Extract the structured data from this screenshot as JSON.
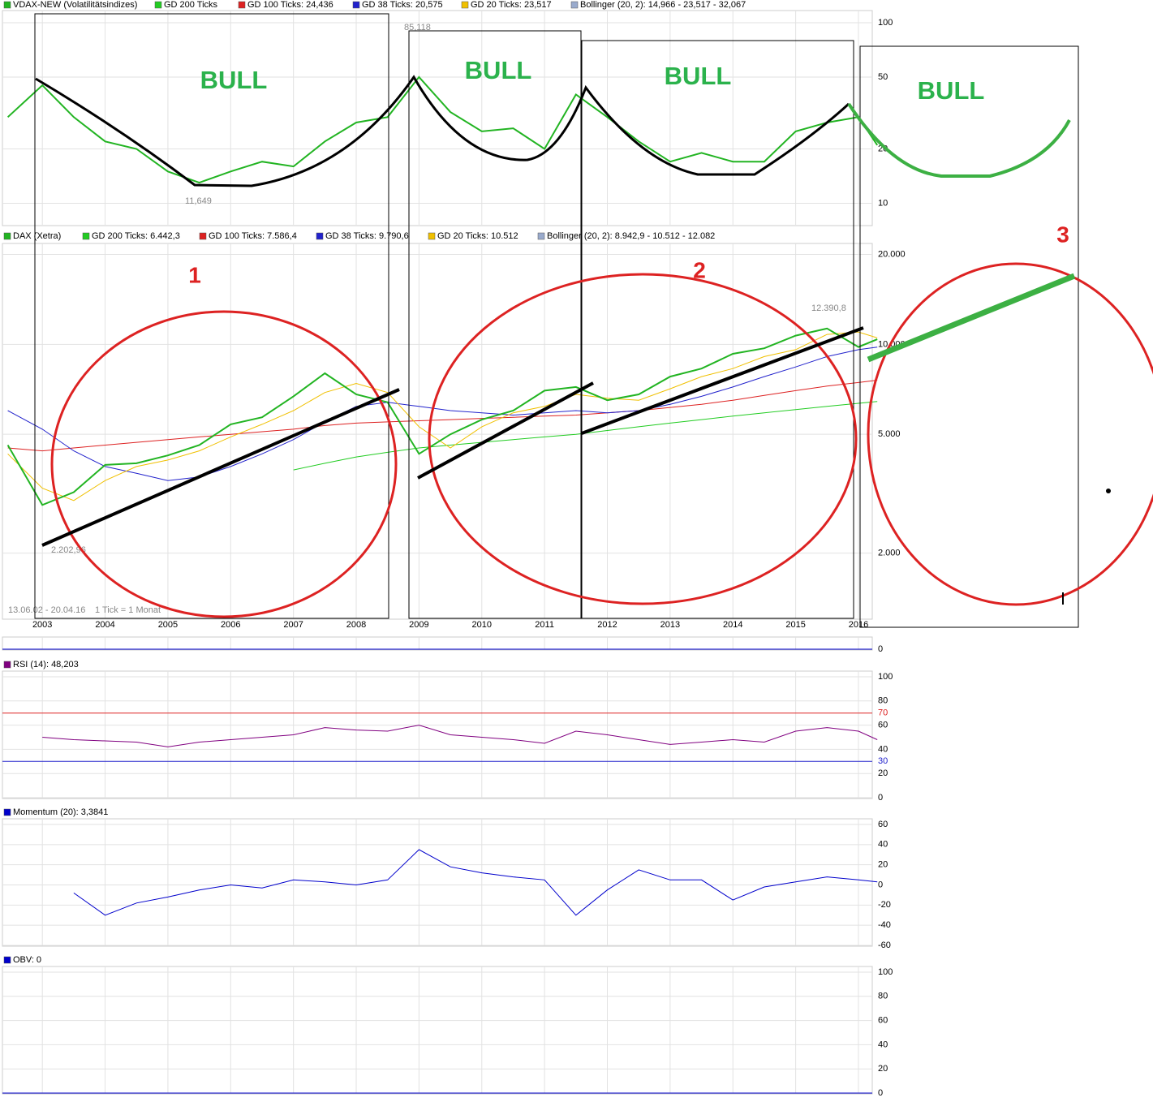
{
  "chart_data": [
    {
      "type": "line",
      "log_scale": true,
      "ylim": [
        7.6,
        112
      ],
      "yticks": [
        10,
        20,
        50,
        100
      ],
      "grid": true,
      "xlim": [
        2002.39,
        2016.22
      ],
      "x": [
        2002.45,
        2003,
        2003.5,
        2004,
        2004.5,
        2005,
        2005.5,
        2006,
        2006.5,
        2007,
        2007.5,
        2008,
        2008.5,
        2009,
        2009.5,
        2010,
        2010.5,
        2011,
        2011.5,
        2012,
        2012.5,
        2013,
        2013.5,
        2014,
        2014.5,
        2015,
        2015.5,
        2016,
        2016.3
      ],
      "series": [
        {
          "name": "VDAX-NEW (Volatilitätsindizes)",
          "color": "#22b422",
          "values": [
            30,
            45,
            30,
            22,
            20,
            15,
            13,
            15,
            17,
            16,
            22,
            28,
            30,
            50,
            32,
            25,
            26,
            20,
            40,
            30,
            22,
            17,
            19,
            17,
            17,
            25,
            28,
            30,
            21
          ]
        }
      ],
      "indicators": [
        {
          "label": "GD 200 Ticks",
          "color": "#22cc22"
        },
        {
          "label": "GD 100 Ticks: 24,436",
          "color": "#dd2222"
        },
        {
          "label": "GD 38 Ticks: 20,575",
          "color": "#2222cc"
        },
        {
          "label": "GD 20 Ticks: 23,517",
          "color": "#f0c000"
        },
        {
          "label": "Bollinger (20, 2): 14,966 - 23,517 - 32,067",
          "color": "#99aacc"
        }
      ],
      "annotations": [
        "85,118",
        "11,649"
      ]
    },
    {
      "type": "line",
      "log_scale": true,
      "ylim": [
        1210,
        21500
      ],
      "yticks": [
        {
          "value": 2000,
          "label": "2.000"
        },
        {
          "value": 5000,
          "label": "5.000"
        },
        {
          "value": 10000,
          "label": "10.000"
        },
        {
          "value": 20000,
          "label": "20.000"
        }
      ],
      "grid": true,
      "xlim": [
        2002.39,
        2016.22
      ],
      "xticks": [
        2003,
        2004,
        2005,
        2006,
        2007,
        2008,
        2009,
        2010,
        2011,
        2012,
        2013,
        2014,
        2015,
        2016
      ],
      "x": [
        2002.45,
        2003,
        2003.5,
        2004,
        2004.5,
        2005,
        2005.5,
        2006,
        2006.5,
        2007,
        2007.5,
        2008,
        2008.5,
        2009,
        2009.5,
        2010,
        2010.5,
        2011,
        2011.5,
        2012,
        2012.5,
        2013,
        2013.5,
        2014,
        2014.5,
        2015,
        2015.5,
        2016,
        2016.3
      ],
      "series": [
        {
          "name": "DAX (Xetra)",
          "color": "#22b422",
          "values": [
            4600,
            2900,
            3200,
            3950,
            4000,
            4250,
            4600,
            5400,
            5700,
            6700,
            8000,
            6800,
            6400,
            4300,
            5000,
            5600,
            6000,
            7000,
            7200,
            6500,
            6800,
            7800,
            8300,
            9300,
            9700,
            10700,
            11300,
            9800,
            10400
          ]
        }
      ],
      "indicators": [
        {
          "label": "GD 200 Ticks: 6.442,3",
          "color": "#22cc22",
          "values": [
            null,
            null,
            null,
            null,
            null,
            null,
            null,
            null,
            null,
            3800,
            4000,
            4200,
            4350,
            4500,
            4600,
            4700,
            4800,
            4900,
            5000,
            5150,
            5300,
            5450,
            5600,
            5750,
            5900,
            6050,
            6200,
            6350,
            6440
          ]
        },
        {
          "label": "GD 100 Ticks: 7.586,4",
          "color": "#dd2222",
          "values": [
            4500,
            4400,
            4500,
            4600,
            4700,
            4800,
            4900,
            5000,
            5100,
            5200,
            5350,
            5450,
            5500,
            5550,
            5600,
            5650,
            5700,
            5750,
            5800,
            5900,
            6000,
            6150,
            6300,
            6500,
            6750,
            7000,
            7250,
            7450,
            7590
          ]
        },
        {
          "label": "GD 38 Ticks: 9.790,6",
          "color": "#2222cc",
          "values": [
            6000,
            5200,
            4400,
            3900,
            3700,
            3500,
            3600,
            3900,
            4300,
            4800,
            5500,
            6200,
            6400,
            6200,
            6000,
            5900,
            5800,
            5900,
            6000,
            5900,
            6000,
            6300,
            6700,
            7200,
            7800,
            8400,
            9100,
            9600,
            9790
          ]
        },
        {
          "label": "GD 20 Ticks: 10.512",
          "color": "#f0c000",
          "values": [
            4300,
            3300,
            3000,
            3500,
            3900,
            4100,
            4400,
            4900,
            5400,
            6000,
            6900,
            7400,
            6900,
            5300,
            4500,
            5300,
            5900,
            6200,
            6800,
            6600,
            6500,
            7100,
            7800,
            8300,
            9100,
            9600,
            10800,
            11000,
            10510
          ]
        },
        {
          "label": "Bollinger (20, 2): 8.942,9 - 10.512 - 12.082",
          "color": "#99aacc"
        }
      ],
      "annotations": [
        "12.390,8",
        "2.202,96",
        "13.06.02 - 20.04.16",
        "1 Tick = 1 Monat"
      ]
    },
    {
      "type": "line",
      "yticks": [
        0
      ],
      "grid": true,
      "zero_line_color": "#0000cc"
    },
    {
      "type": "line",
      "ylim": [
        0,
        100
      ],
      "yticks": [
        0,
        20,
        40,
        60,
        80,
        100
      ],
      "grid": true,
      "xlim": [
        2002.39,
        2016.22
      ],
      "ref_lines": [
        {
          "value": 70,
          "color": "#dd2222"
        },
        {
          "value": 30,
          "color": "#2222cc"
        }
      ],
      "x": [
        2002.45,
        2003,
        2003.5,
        2004,
        2004.5,
        2005,
        2005.5,
        2006,
        2006.5,
        2007,
        2007.5,
        2008,
        2008.5,
        2009,
        2009.5,
        2010,
        2010.5,
        2011,
        2011.5,
        2012,
        2012.5,
        2013,
        2013.5,
        2014,
        2014.5,
        2015,
        2015.5,
        2016,
        2016.3
      ],
      "series": [
        {
          "name": "RSI (14): 48,203",
          "color": "#800080",
          "values": [
            null,
            50,
            48,
            47,
            46,
            42,
            46,
            48,
            50,
            52,
            58,
            56,
            55,
            60,
            52,
            50,
            48,
            45,
            55,
            52,
            48,
            44,
            46,
            48,
            46,
            55,
            58,
            55,
            48
          ]
        }
      ]
    },
    {
      "type": "line",
      "ylim": [
        -60,
        60
      ],
      "yticks": [
        -60,
        -40,
        -20,
        0,
        20,
        40,
        60
      ],
      "grid": true,
      "xlim": [
        2002.39,
        2016.22
      ],
      "x": [
        2002.45,
        2003,
        2003.5,
        2004,
        2004.5,
        2005,
        2005.5,
        2006,
        2006.5,
        2007,
        2007.5,
        2008,
        2008.5,
        2009,
        2009.5,
        2010,
        2010.5,
        2011,
        2011.5,
        2012,
        2012.5,
        2013,
        2013.5,
        2014,
        2014.5,
        2015,
        2015.5,
        2016,
        2016.3
      ],
      "series": [
        {
          "name": "Momentum (20): 3,3841",
          "color": "#0000cc",
          "values": [
            null,
            null,
            -8,
            -30,
            -18,
            -12,
            -5,
            0,
            -3,
            5,
            3,
            0,
            5,
            35,
            18,
            12,
            8,
            5,
            -30,
            -5,
            15,
            5,
            5,
            -15,
            -2,
            3,
            8,
            5,
            3
          ]
        }
      ]
    },
    {
      "type": "line",
      "ylim": [
        0,
        100
      ],
      "yticks": [
        0,
        20,
        40,
        60,
        80,
        100
      ],
      "grid": true,
      "zero_line_color": "#0000cc",
      "legend": [
        {
          "label": "OBV: 0",
          "color": "#0000cc"
        }
      ]
    }
  ],
  "overlay": {
    "labels": [
      "BULL",
      "BULL",
      "BULL",
      "BULL",
      "1",
      "2",
      "3"
    ]
  }
}
